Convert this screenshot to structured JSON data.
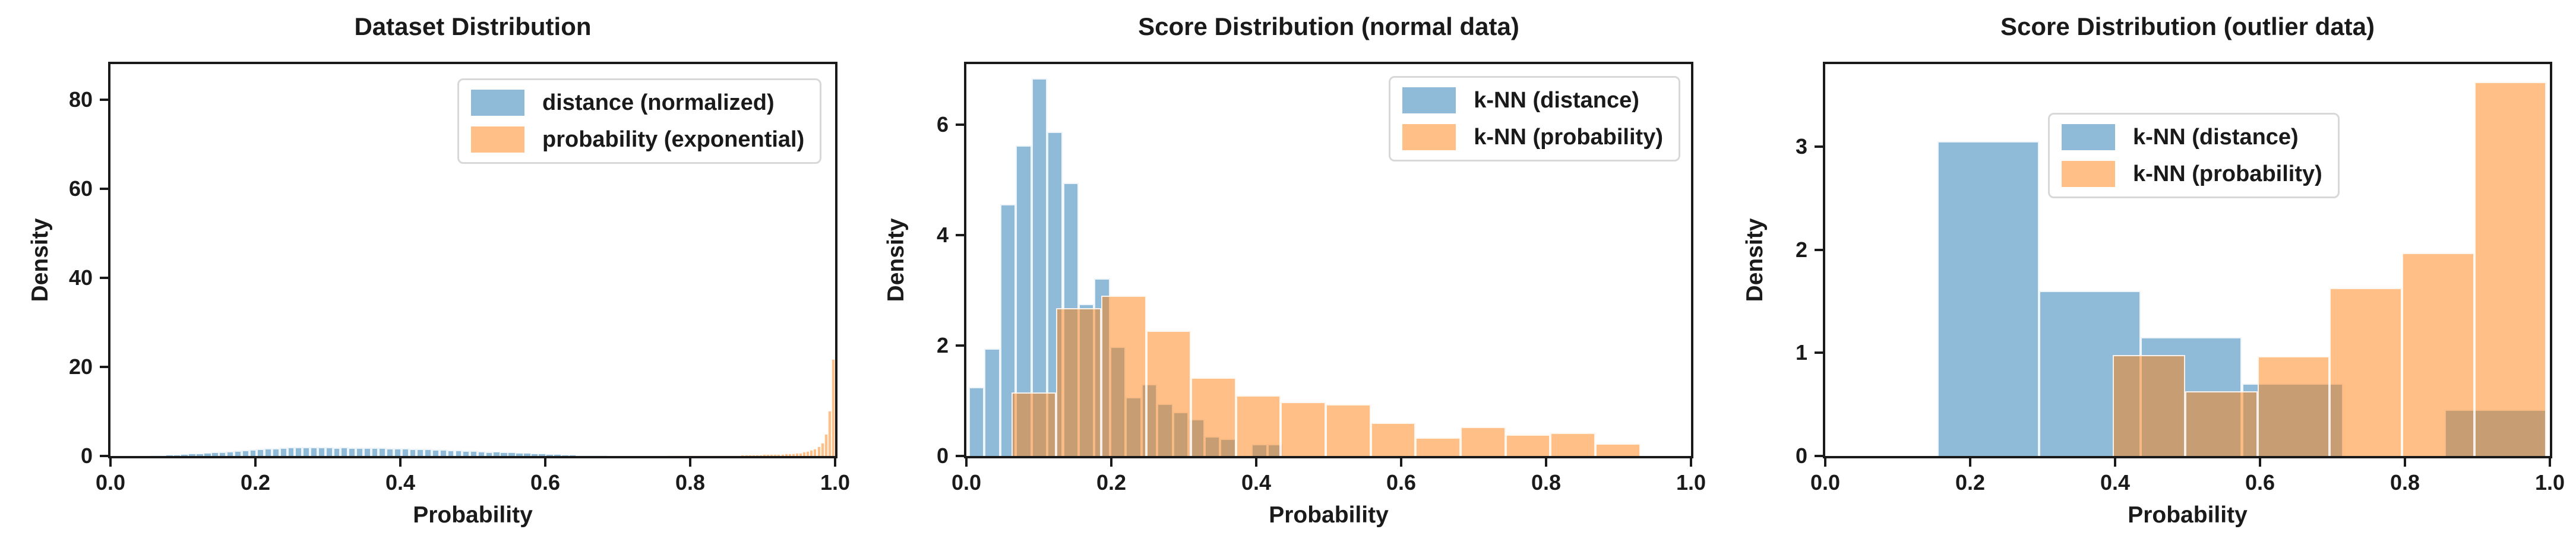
{
  "figure": {
    "background": "#ffffff",
    "text_color": "#1a1a1a"
  },
  "colors": {
    "blue_base": "#1f77b4",
    "orange_base": "#ff7f0e",
    "alpha": 0.5,
    "blue_fill": "rgba(31,119,180,0.5)",
    "orange_fill": "rgba(255,127,14,0.5)",
    "blue_swatch": "#8fbbd9",
    "orange_swatch": "#ffbf86",
    "spine": "#1a1a1a",
    "legend_border": "#d8d8d8"
  },
  "chart_data": [
    {
      "type": "bar",
      "subtype": "overlaid-histogram",
      "title": "Dataset Distribution",
      "xlabel": "Probability",
      "ylabel": "Density",
      "xlim": [
        0.0,
        1.0
      ],
      "ylim": [
        0,
        88
      ],
      "x_ticks": [
        {
          "v": 0.0,
          "label": "0.0"
        },
        {
          "v": 0.2,
          "label": "0.2"
        },
        {
          "v": 0.4,
          "label": "0.4"
        },
        {
          "v": 0.6,
          "label": "0.6"
        },
        {
          "v": 0.8,
          "label": "0.8"
        },
        {
          "v": 1.0,
          "label": "1.0"
        }
      ],
      "y_ticks": [
        {
          "v": 0,
          "label": "0"
        },
        {
          "v": 20,
          "label": "20"
        },
        {
          "v": 40,
          "label": "40"
        },
        {
          "v": 60,
          "label": "60"
        },
        {
          "v": 80,
          "label": "80"
        }
      ],
      "grid": false,
      "legend_position": "upper right",
      "legend": [
        {
          "label": "distance (normalized)",
          "swatch": "#8fbbd9"
        },
        {
          "label": "probability (exponential)",
          "swatch": "#ffbf86"
        }
      ],
      "series": [
        {
          "name": "distance (normalized)",
          "color": "rgba(31,119,180,0.5)",
          "bin_start": 0.055,
          "bin_width": 0.0105,
          "densities": [
            0.08,
            0.14,
            0.22,
            0.3,
            0.4,
            0.5,
            0.6,
            0.72,
            0.84,
            0.96,
            1.08,
            1.2,
            1.32,
            1.45,
            1.58,
            1.7,
            1.8,
            1.88,
            1.95,
            2.0,
            1.96,
            2.0,
            1.94,
            1.98,
            1.92,
            1.96,
            1.9,
            1.92,
            1.86,
            1.88,
            1.84,
            1.8,
            1.76,
            1.72,
            1.66,
            1.6,
            1.54,
            1.48,
            1.42,
            1.36,
            1.3,
            1.22,
            1.15,
            1.08,
            1.0,
            0.92,
            0.85,
            0.78,
            0.7,
            0.62,
            0.55,
            0.48,
            0.42,
            0.35,
            0.29,
            0.23,
            0.18,
            0.13,
            0.09,
            0.05
          ]
        },
        {
          "name": "probability (exponential)",
          "color": "rgba(255,127,14,0.5)",
          "bin_start": 0.77,
          "bin_width": 0.005,
          "densities": [
            0.04,
            0.05,
            0.05,
            0.06,
            0.06,
            0.07,
            0.07,
            0.08,
            0.09,
            0.1,
            0.11,
            0.12,
            0.13,
            0.14,
            0.15,
            0.16,
            0.17,
            0.18,
            0.19,
            0.2,
            0.22,
            0.24,
            0.26,
            0.28,
            0.3,
            0.32,
            0.34,
            0.36,
            0.38,
            0.4,
            0.42,
            0.46,
            0.5,
            0.54,
            0.58,
            0.66,
            0.72,
            0.93,
            1.1,
            1.3,
            1.6,
            2.1,
            3.0,
            4.9,
            10.2,
            21.7
          ]
        }
      ]
    },
    {
      "type": "bar",
      "subtype": "overlaid-histogram",
      "title": "Score Distribution (normal data)",
      "xlabel": "Probability",
      "ylabel": "Density",
      "xlim": [
        0.0,
        1.0
      ],
      "ylim": [
        0,
        7.1
      ],
      "x_ticks": [
        {
          "v": 0.0,
          "label": "0.0"
        },
        {
          "v": 0.2,
          "label": "0.2"
        },
        {
          "v": 0.4,
          "label": "0.4"
        },
        {
          "v": 0.6,
          "label": "0.6"
        },
        {
          "v": 0.8,
          "label": "0.8"
        },
        {
          "v": 1.0,
          "label": "1.0"
        }
      ],
      "y_ticks": [
        {
          "v": 0,
          "label": "0"
        },
        {
          "v": 2,
          "label": "2"
        },
        {
          "v": 4,
          "label": "4"
        },
        {
          "v": 6,
          "label": "6"
        }
      ],
      "grid": false,
      "legend_position": "upper right",
      "legend": [
        {
          "label": "k-NN (distance)",
          "swatch": "#8fbbd9"
        },
        {
          "label": "k-NN (probability)",
          "swatch": "#ffbf86"
        }
      ],
      "series": [
        {
          "name": "k-NN (distance)",
          "color": "rgba(31,119,180,0.5)",
          "bin_start": 0.003,
          "bin_width": 0.0217,
          "densities": [
            1.25,
            1.95,
            4.56,
            5.63,
            6.84,
            5.87,
            4.95,
            2.75,
            3.22,
            1.98,
            1.06,
            1.3,
            0.95,
            0.8,
            0.67,
            0.36,
            0.31,
            0,
            0.21,
            0.21
          ]
        },
        {
          "name": "k-NN (probability)",
          "color": "rgba(255,127,14,0.5)",
          "bin_start": 0.062,
          "bin_width": 0.062,
          "densities": [
            1.15,
            2.68,
            2.9,
            2.27,
            1.42,
            1.1,
            0.98,
            0.94,
            0.6,
            0.33,
            0.53,
            0.39,
            0.42,
            0.23
          ]
        }
      ]
    },
    {
      "type": "bar",
      "subtype": "overlaid-histogram",
      "title": "Score Distribution (outlier data)",
      "xlabel": "Probability",
      "ylabel": "Density",
      "xlim": [
        0.0,
        1.0
      ],
      "ylim": [
        0,
        3.8
      ],
      "x_ticks": [
        {
          "v": 0.0,
          "label": "0.0"
        },
        {
          "v": 0.2,
          "label": "0.2"
        },
        {
          "v": 0.4,
          "label": "0.4"
        },
        {
          "v": 0.6,
          "label": "0.6"
        },
        {
          "v": 0.8,
          "label": "0.8"
        },
        {
          "v": 1.0,
          "label": "1.0"
        }
      ],
      "y_ticks": [
        {
          "v": 0,
          "label": "0"
        },
        {
          "v": 1,
          "label": "1"
        },
        {
          "v": 2,
          "label": "2"
        },
        {
          "v": 3,
          "label": "3"
        }
      ],
      "grid": false,
      "legend_position": "upper center-left",
      "legend": [
        {
          "label": "k-NN (distance)",
          "swatch": "#8fbbd9"
        },
        {
          "label": "k-NN (probability)",
          "swatch": "#ffbf86"
        }
      ],
      "series": [
        {
          "name": "k-NN (distance)",
          "color": "rgba(31,119,180,0.5)",
          "bin_start": 0.155,
          "bin_width": 0.14,
          "densities": [
            3.05,
            1.6,
            1.15,
            0.7,
            0,
            0.45
          ]
        },
        {
          "name": "k-NN (probability)",
          "color": "rgba(255,127,14,0.5)",
          "bin_start": 0.397,
          "bin_width": 0.0997,
          "densities": [
            0.98,
            0.63,
            0.97,
            1.63,
            1.97,
            3.63
          ]
        }
      ]
    }
  ]
}
